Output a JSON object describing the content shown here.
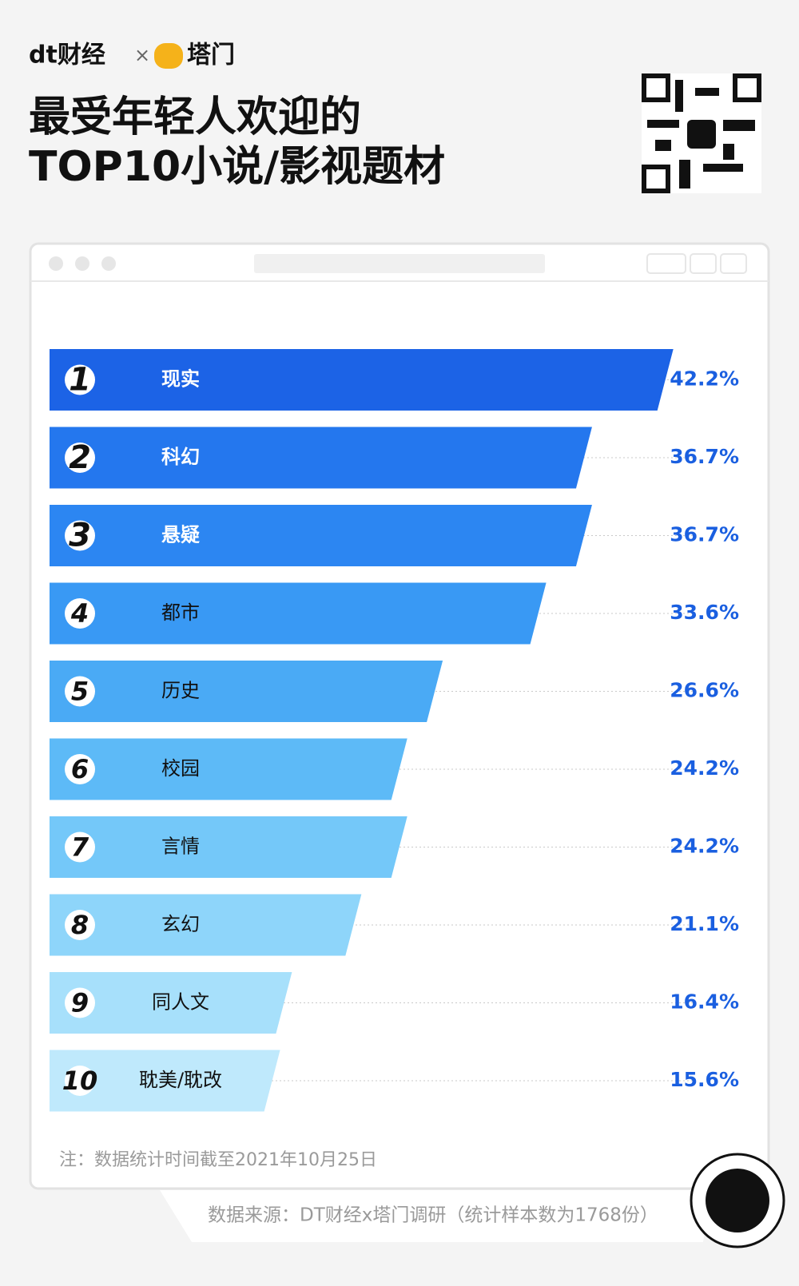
{
  "brand": {
    "left": "dt财经",
    "times": "×",
    "right": "塔门"
  },
  "chart_data": {
    "type": "bar",
    "orientation": "horizontal",
    "title": "最受年轻人欢迎的",
    "subtitle": "TOP10小说/影视题材",
    "ranks": [
      1,
      2,
      3,
      4,
      5,
      6,
      7,
      8,
      9,
      10
    ],
    "categories": [
      "现实",
      "科幻",
      "悬疑",
      "都市",
      "历史",
      "校园",
      "言情",
      "玄幻",
      "同人文",
      "耽美/耽改"
    ],
    "values": [
      42.2,
      36.7,
      36.7,
      33.6,
      26.6,
      24.2,
      24.2,
      21.1,
      16.4,
      15.6
    ],
    "value_labels": [
      "42.2%",
      "36.7%",
      "36.7%",
      "33.6%",
      "26.6%",
      "24.2%",
      "24.2%",
      "21.1%",
      "16.4%",
      "15.6%"
    ],
    "colors": [
      "#1c63e6",
      "#2477ee",
      "#2c86f2",
      "#3999f4",
      "#4aaaf5",
      "#5dbaf7",
      "#74c8f9",
      "#8ed5fa",
      "#a7e0fb",
      "#bfe9fc"
    ],
    "label_color": "#1a5fe0",
    "xlim": [
      0,
      50
    ],
    "note": "注：数据统计时间截至2021年10月25日",
    "source": "数据来源：DT财经x塔门调研（统计样本数为1768份）"
  }
}
